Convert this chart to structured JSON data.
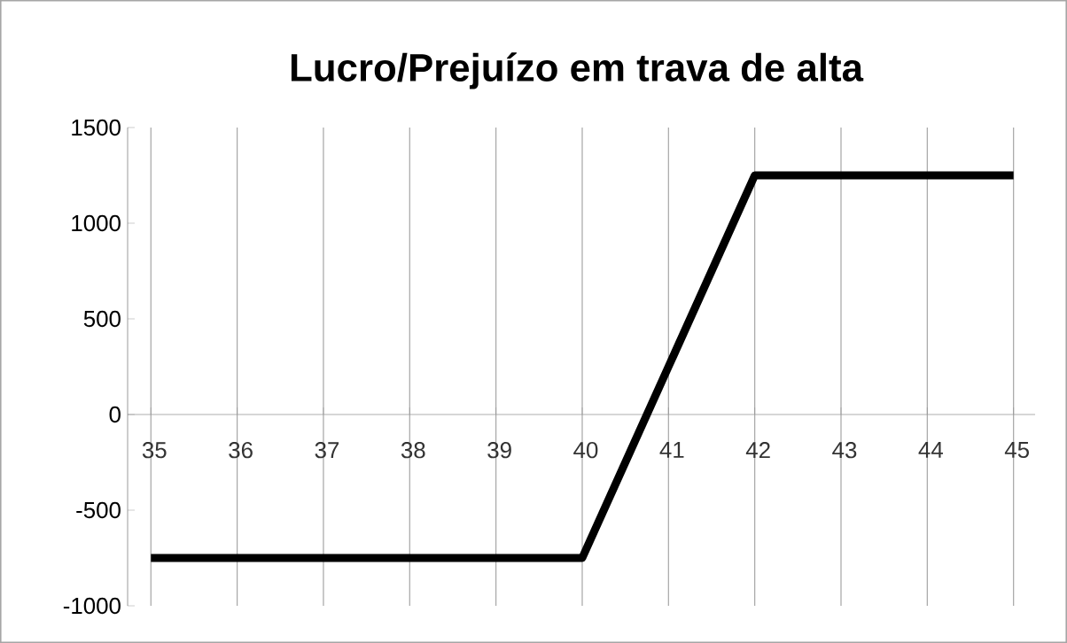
{
  "chart_data": {
    "type": "line",
    "title": "Lucro/Prejuízo em trava de alta",
    "categories": [
      "35",
      "36",
      "37",
      "38",
      "39",
      "40",
      "41",
      "42",
      "43",
      "44",
      "45"
    ],
    "series": [
      {
        "color": "#000000",
        "values": [
          -750,
          -750,
          -750,
          -750,
          -750,
          -750,
          250,
          1250,
          1250,
          1250,
          1250
        ]
      }
    ],
    "ylim": [
      -1000,
      1500
    ],
    "yticks": [
      -1000,
      -500,
      0,
      500,
      1000,
      1500
    ],
    "grid": "x",
    "marker": "none",
    "line_style": "solid"
  }
}
